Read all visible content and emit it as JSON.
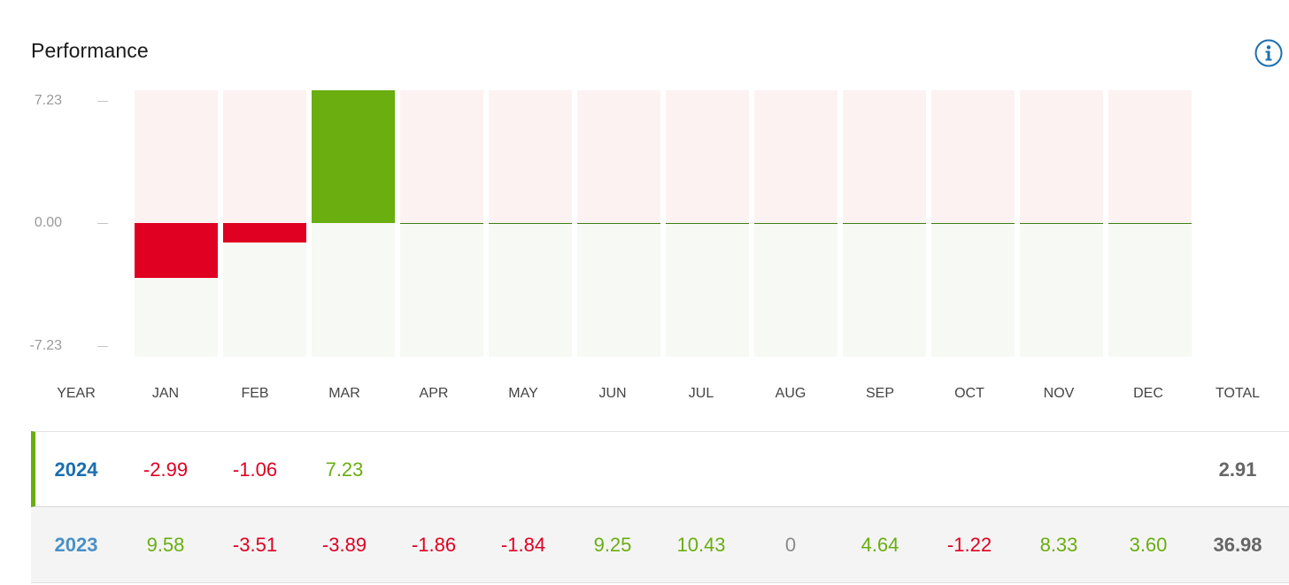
{
  "widget": {
    "title": "Performance",
    "info_icon": "info-circle-icon",
    "colors": {
      "positive": "#6aae10",
      "negative": "#e00022",
      "year_selected": "#1a6fb0",
      "year_other": "#4a90c8",
      "zero_line": "#3c7f14",
      "neutral": "#8a8a8a"
    }
  },
  "chart_data": {
    "type": "bar",
    "categories": [
      "JAN",
      "FEB",
      "MAR",
      "APR",
      "MAY",
      "JUN",
      "JUL",
      "AUG",
      "SEP",
      "OCT",
      "NOV",
      "DEC"
    ],
    "series": [
      {
        "values": [
          -2.99,
          -1.06,
          7.23,
          0,
          0,
          0,
          0,
          0,
          0,
          0,
          0,
          0
        ]
      }
    ],
    "ylim": [
      -7.23,
      7.23
    ],
    "yticks": [
      "7.23",
      "0.00",
      "-7.23"
    ],
    "grid": false
  },
  "table": {
    "headers": [
      "YEAR",
      "JAN",
      "FEB",
      "MAR",
      "APR",
      "MAY",
      "JUN",
      "JUL",
      "AUG",
      "SEP",
      "OCT",
      "NOV",
      "DEC",
      "TOTAL"
    ],
    "rows": [
      {
        "year": "2024",
        "values": [
          "-2.99",
          "-1.06",
          "7.23",
          "",
          "",
          "",
          "",
          "",
          "",
          "",
          "",
          ""
        ],
        "total": "2.91"
      },
      {
        "year": "2023",
        "values": [
          "9.58",
          "-3.51",
          "-3.89",
          "-1.86",
          "-1.84",
          "9.25",
          "10.43",
          "0",
          "4.64",
          "-1.22",
          "8.33",
          "3.60"
        ],
        "total": "36.98"
      }
    ]
  }
}
